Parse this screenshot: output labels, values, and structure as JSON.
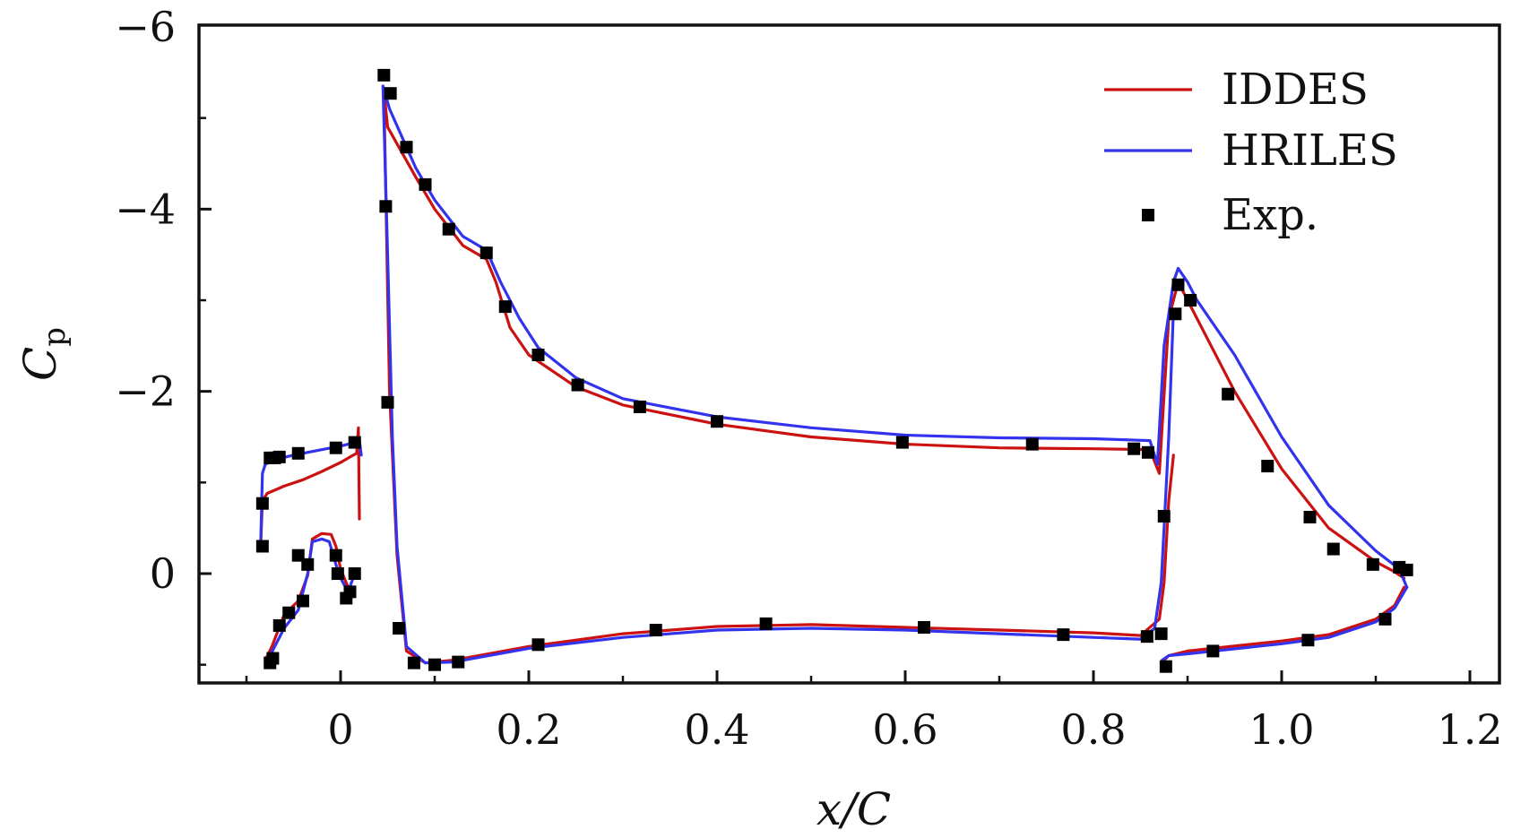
{
  "chart_data": {
    "type": "line",
    "xlabel": "x/C",
    "ylabel": "C",
    "ylabel_subscript": "p",
    "xlim": [
      -0.155,
      1.2
    ],
    "ylim": [
      1.2,
      -6.0
    ],
    "y_inverted": true,
    "xticks": [
      0,
      0.2,
      0.4,
      0.6,
      0.8,
      1.0,
      1.2
    ],
    "xtick_labels": [
      "0",
      "0.2",
      "0.4",
      "0.6",
      "0.8",
      "1.0",
      "1.2"
    ],
    "yticks": [
      -6,
      -4,
      -2,
      0
    ],
    "ytick_labels": [
      "−6",
      "−4",
      "−2",
      "0"
    ],
    "grid": false,
    "legend_position": "top-right",
    "colors": {
      "IDDES": "#cc1111",
      "HRILES": "#3333ee",
      "Exp.": "#000000"
    },
    "series": [
      {
        "name": "IDDES",
        "style": "line",
        "segments": [
          [
            [
              -0.085,
              -0.3
            ],
            [
              -0.083,
              -0.8
            ],
            [
              -0.078,
              -0.88
            ],
            [
              -0.06,
              -0.96
            ],
            [
              -0.04,
              -1.03
            ],
            [
              -0.02,
              -1.12
            ],
            [
              0.0,
              -1.22
            ],
            [
              0.01,
              -1.28
            ],
            [
              0.017,
              -1.32
            ],
            [
              0.019,
              -1.6
            ],
            [
              0.02,
              -0.6
            ]
          ],
          [
            [
              -0.08,
              0.95
            ],
            [
              -0.073,
              0.8
            ],
            [
              -0.06,
              0.45
            ],
            [
              -0.045,
              0.3
            ],
            [
              -0.035,
              0.02
            ],
            [
              -0.03,
              -0.38
            ],
            [
              -0.02,
              -0.44
            ],
            [
              -0.01,
              -0.43
            ],
            [
              -0.005,
              -0.3
            ],
            [
              0.0,
              -0.05
            ],
            [
              0.008,
              0.15
            ]
          ],
          [
            [
              0.046,
              -5.3
            ],
            [
              0.05,
              -4.9
            ],
            [
              0.08,
              -4.35
            ],
            [
              0.1,
              -4.0
            ],
            [
              0.13,
              -3.6
            ],
            [
              0.155,
              -3.45
            ],
            [
              0.165,
              -3.2
            ],
            [
              0.18,
              -2.7
            ],
            [
              0.2,
              -2.4
            ],
            [
              0.25,
              -2.05
            ],
            [
              0.3,
              -1.85
            ],
            [
              0.4,
              -1.64
            ],
            [
              0.5,
              -1.5
            ],
            [
              0.6,
              -1.42
            ],
            [
              0.7,
              -1.38
            ],
            [
              0.8,
              -1.37
            ],
            [
              0.86,
              -1.36
            ],
            [
              0.87,
              -1.1
            ],
            [
              0.88,
              -2.8
            ],
            [
              0.89,
              -3.2
            ],
            [
              0.9,
              -3.0
            ],
            [
              0.95,
              -2.0
            ],
            [
              1.0,
              -1.15
            ],
            [
              1.05,
              -0.5
            ],
            [
              1.1,
              -0.13
            ],
            [
              1.12,
              -0.02
            ],
            [
              1.13,
              0.05
            ]
          ],
          [
            [
              0.046,
              -5.3
            ],
            [
              0.052,
              -2.0
            ],
            [
              0.06,
              -0.2
            ],
            [
              0.07,
              0.85
            ],
            [
              0.09,
              0.98
            ],
            [
              0.12,
              0.95
            ],
            [
              0.2,
              0.8
            ],
            [
              0.3,
              0.66
            ],
            [
              0.4,
              0.58
            ],
            [
              0.5,
              0.56
            ],
            [
              0.6,
              0.59
            ],
            [
              0.7,
              0.62
            ],
            [
              0.8,
              0.65
            ],
            [
              0.85,
              0.68
            ],
            [
              0.87,
              0.5
            ],
            [
              0.875,
              0.1
            ],
            [
              0.88,
              -0.8
            ],
            [
              0.885,
              -1.3
            ]
          ],
          [
            [
              0.875,
              0.95
            ],
            [
              0.88,
              0.9
            ],
            [
              0.9,
              0.85
            ],
            [
              1.0,
              0.74
            ],
            [
              1.05,
              0.67
            ],
            [
              1.1,
              0.5
            ],
            [
              1.12,
              0.35
            ],
            [
              1.13,
              0.15
            ]
          ]
        ]
      },
      {
        "name": "HRILES",
        "style": "line",
        "segments": [
          [
            [
              -0.085,
              -0.3
            ],
            [
              -0.083,
              -1.1
            ],
            [
              -0.08,
              -1.2
            ],
            [
              -0.07,
              -1.25
            ],
            [
              -0.05,
              -1.3
            ],
            [
              -0.02,
              -1.36
            ],
            [
              0.0,
              -1.4
            ],
            [
              0.012,
              -1.43
            ],
            [
              0.02,
              -1.46
            ],
            [
              0.022,
              -1.3
            ]
          ],
          [
            [
              -0.08,
              0.95
            ],
            [
              -0.075,
              0.9
            ],
            [
              -0.06,
              0.6
            ],
            [
              -0.045,
              0.4
            ],
            [
              -0.035,
              0.0
            ],
            [
              -0.03,
              -0.35
            ],
            [
              -0.02,
              -0.38
            ],
            [
              -0.012,
              -0.35
            ],
            [
              -0.005,
              -0.1
            ],
            [
              0.0,
              0.05
            ],
            [
              0.008,
              0.2
            ],
            [
              0.015,
              0.0
            ]
          ],
          [
            [
              0.045,
              -5.35
            ],
            [
              0.052,
              -5.1
            ],
            [
              0.08,
              -4.45
            ],
            [
              0.1,
              -4.1
            ],
            [
              0.13,
              -3.7
            ],
            [
              0.155,
              -3.55
            ],
            [
              0.17,
              -3.2
            ],
            [
              0.19,
              -2.8
            ],
            [
              0.21,
              -2.48
            ],
            [
              0.25,
              -2.15
            ],
            [
              0.3,
              -1.92
            ],
            [
              0.4,
              -1.72
            ],
            [
              0.5,
              -1.6
            ],
            [
              0.6,
              -1.52
            ],
            [
              0.7,
              -1.49
            ],
            [
              0.8,
              -1.48
            ],
            [
              0.86,
              -1.46
            ],
            [
              0.868,
              -1.2
            ],
            [
              0.875,
              -2.5
            ],
            [
              0.885,
              -3.2
            ],
            [
              0.89,
              -3.35
            ],
            [
              0.9,
              -3.2
            ],
            [
              0.91,
              -3.0
            ],
            [
              0.95,
              -2.4
            ],
            [
              1.0,
              -1.5
            ],
            [
              1.05,
              -0.75
            ],
            [
              1.1,
              -0.25
            ],
            [
              1.125,
              -0.05
            ],
            [
              1.133,
              0.15
            ]
          ],
          [
            [
              0.045,
              -5.35
            ],
            [
              0.05,
              -3.5
            ],
            [
              0.055,
              -1.5
            ],
            [
              0.06,
              -0.3
            ],
            [
              0.07,
              0.8
            ],
            [
              0.09,
              0.98
            ],
            [
              0.12,
              0.97
            ],
            [
              0.2,
              0.82
            ],
            [
              0.3,
              0.7
            ],
            [
              0.4,
              0.62
            ],
            [
              0.5,
              0.6
            ],
            [
              0.6,
              0.62
            ],
            [
              0.7,
              0.66
            ],
            [
              0.8,
              0.7
            ],
            [
              0.85,
              0.72
            ],
            [
              0.865,
              0.6
            ],
            [
              0.872,
              0.1
            ],
            [
              0.875,
              -0.5
            ],
            [
              0.88,
              -1.5
            ],
            [
              0.885,
              -2.9
            ]
          ],
          [
            [
              0.873,
              0.95
            ],
            [
              0.88,
              0.9
            ],
            [
              0.9,
              0.88
            ],
            [
              1.0,
              0.77
            ],
            [
              1.05,
              0.7
            ],
            [
              1.1,
              0.53
            ],
            [
              1.12,
              0.38
            ],
            [
              1.133,
              0.15
            ]
          ]
        ]
      },
      {
        "name": "Exp.",
        "style": "marker",
        "points": [
          [
            -0.083,
            -0.3
          ],
          [
            -0.083,
            -0.77
          ],
          [
            -0.075,
            -1.27
          ],
          [
            -0.07,
            -1.27
          ],
          [
            -0.065,
            -1.28
          ],
          [
            -0.045,
            -1.32
          ],
          [
            -0.005,
            -1.38
          ],
          [
            0.015,
            -1.44
          ],
          [
            -0.075,
            0.98
          ],
          [
            -0.072,
            0.93
          ],
          [
            -0.065,
            0.57
          ],
          [
            -0.055,
            0.43
          ],
          [
            -0.045,
            -0.2
          ],
          [
            -0.04,
            0.3
          ],
          [
            -0.035,
            -0.1
          ],
          [
            -0.005,
            -0.2
          ],
          [
            -0.003,
            0.0
          ],
          [
            0.006,
            0.27
          ],
          [
            0.01,
            0.2
          ],
          [
            0.015,
            0.0
          ],
          [
            0.046,
            -5.47
          ],
          [
            0.048,
            -4.03
          ],
          [
            0.05,
            -1.88
          ],
          [
            0.053,
            -5.27
          ],
          [
            0.062,
            0.6
          ],
          [
            0.07,
            -4.68
          ],
          [
            0.078,
            0.98
          ],
          [
            0.09,
            -4.27
          ],
          [
            0.1,
            1.0
          ],
          [
            0.115,
            -3.78
          ],
          [
            0.125,
            0.97
          ],
          [
            0.155,
            -3.52
          ],
          [
            0.175,
            -2.93
          ],
          [
            0.21,
            0.78
          ],
          [
            0.21,
            -2.4
          ],
          [
            0.252,
            -2.07
          ],
          [
            0.318,
            -1.83
          ],
          [
            0.335,
            0.62
          ],
          [
            0.4,
            -1.67
          ],
          [
            0.452,
            0.55
          ],
          [
            0.597,
            -1.44
          ],
          [
            0.62,
            0.59
          ],
          [
            0.735,
            -1.42
          ],
          [
            0.768,
            0.67
          ],
          [
            0.843,
            -1.37
          ],
          [
            0.857,
            0.69
          ],
          [
            0.858,
            -1.33
          ],
          [
            0.872,
            0.66
          ],
          [
            0.875,
            -0.63
          ],
          [
            0.877,
            1.02
          ],
          [
            0.887,
            -2.85
          ],
          [
            0.89,
            -3.17
          ],
          [
            0.903,
            -3.0
          ],
          [
            0.927,
            0.85
          ],
          [
            0.943,
            -1.97
          ],
          [
            0.985,
            -1.18
          ],
          [
            1.028,
            0.73
          ],
          [
            1.03,
            -0.62
          ],
          [
            1.055,
            -0.27
          ],
          [
            1.097,
            -0.1
          ],
          [
            1.11,
            0.5
          ],
          [
            1.125,
            -0.07
          ],
          [
            1.133,
            -0.04
          ]
        ]
      }
    ]
  }
}
